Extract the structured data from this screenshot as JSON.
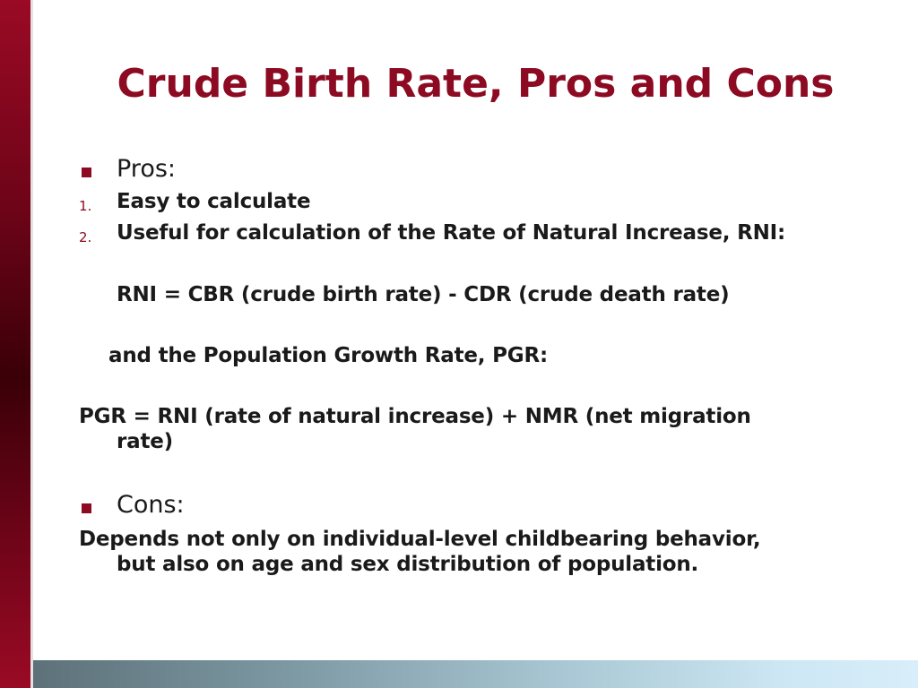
{
  "slide": {
    "title": "Crude Birth Rate, Pros and Cons",
    "pros_heading": "Pros:",
    "pros_items": [
      {
        "marker": "1.",
        "text": "Easy to calculate"
      },
      {
        "marker": "2.",
        "text": "Useful for calculation of the Rate of Natural Increase, RNI:"
      }
    ],
    "rni_formula": "RNI = CBR (crude birth rate)  -  CDR (crude death rate)",
    "pgr_intro": "and the Population Growth Rate, PGR:",
    "pgr_formula_line1": "PGR = RNI (rate of natural increase)  +  NMR (net migration",
    "pgr_formula_line2": "rate)",
    "cons_heading": "Cons:",
    "cons_line1": "Depends not only on individual-level childbearing behavior,",
    "cons_line2": "but also on age and sex distribution of population."
  },
  "theme": {
    "accent_color": "#8c0a22",
    "text_color": "#1a1a1a"
  }
}
